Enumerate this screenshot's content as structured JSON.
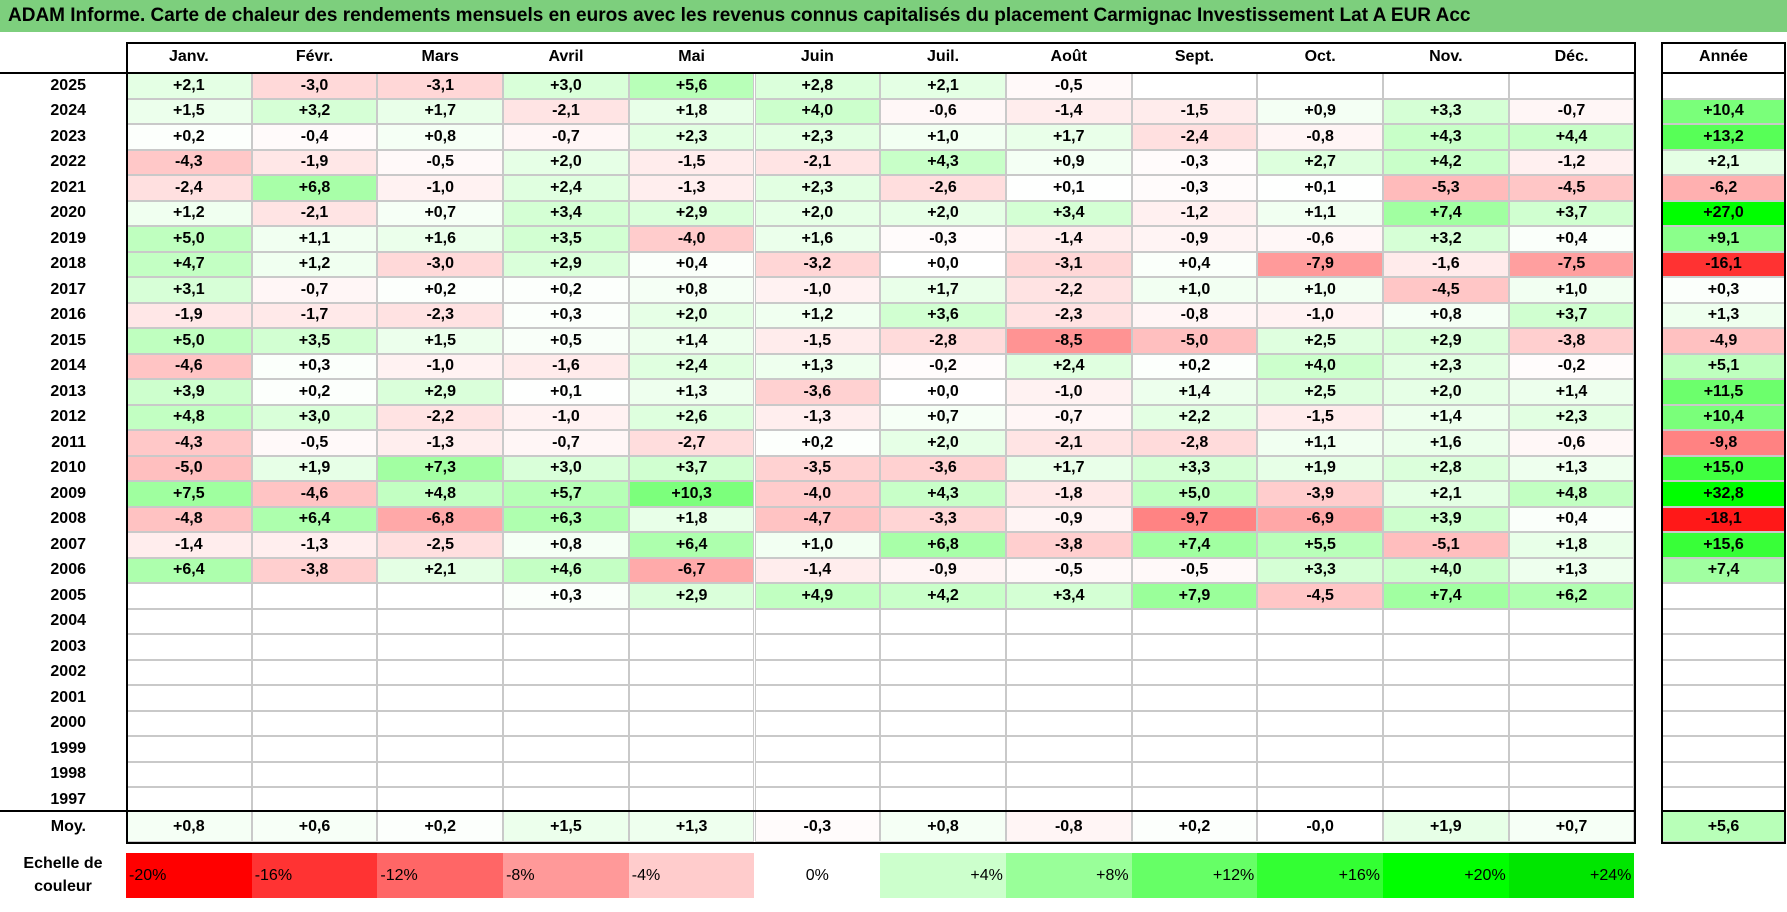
{
  "title": "ADAM Informe. Carte de chaleur des rendements mensuels en euros avec les revenus connus capitalisés du placement Carmignac Investissement Lat A EUR Acc",
  "chart_data": {
    "type": "heatmap",
    "months": [
      "Janv.",
      "Févr.",
      "Mars",
      "Avril",
      "Mai",
      "Juin",
      "Juil.",
      "Août",
      "Sept.",
      "Oct.",
      "Nov.",
      "Déc."
    ],
    "annual_label": "Année",
    "rows": [
      {
        "year": "2025",
        "values": [
          2.1,
          -3.0,
          -3.1,
          3.0,
          5.6,
          2.8,
          2.1,
          -0.5,
          null,
          null,
          null,
          null
        ],
        "annual": null
      },
      {
        "year": "2024",
        "values": [
          1.5,
          3.2,
          1.7,
          -2.1,
          1.8,
          4.0,
          -0.6,
          -1.4,
          -1.5,
          0.9,
          3.3,
          -0.7
        ],
        "annual": 10.4
      },
      {
        "year": "2023",
        "values": [
          0.2,
          -0.4,
          0.8,
          -0.7,
          2.3,
          2.3,
          1.0,
          1.7,
          -2.4,
          -0.8,
          4.3,
          4.4
        ],
        "annual": 13.2
      },
      {
        "year": "2022",
        "values": [
          -4.3,
          -1.9,
          -0.5,
          2.0,
          -1.5,
          -2.1,
          4.3,
          0.9,
          -0.3,
          2.7,
          4.2,
          -1.2
        ],
        "annual": 2.1
      },
      {
        "year": "2021",
        "values": [
          -2.4,
          6.8,
          -1.0,
          2.4,
          -1.3,
          2.3,
          -2.6,
          0.1,
          -0.3,
          0.1,
          -5.3,
          -4.5
        ],
        "annual": -6.2
      },
      {
        "year": "2020",
        "values": [
          1.2,
          -2.1,
          0.7,
          3.4,
          2.9,
          2.0,
          2.0,
          3.4,
          -1.2,
          1.1,
          7.4,
          3.7
        ],
        "annual": 27.0
      },
      {
        "year": "2019",
        "values": [
          5.0,
          1.1,
          1.6,
          3.5,
          -4.0,
          1.6,
          -0.3,
          -1.4,
          -0.9,
          -0.6,
          3.2,
          0.4
        ],
        "annual": 9.1
      },
      {
        "year": "2018",
        "values": [
          4.7,
          1.2,
          -3.0,
          2.9,
          0.4,
          -3.2,
          0.0,
          -3.1,
          0.4,
          -7.9,
          -1.6,
          -7.5
        ],
        "annual": -16.1
      },
      {
        "year": "2017",
        "values": [
          3.1,
          -0.7,
          0.2,
          0.2,
          0.8,
          -1.0,
          1.7,
          -2.2,
          1.0,
          1.0,
          -4.5,
          1.0
        ],
        "annual": 0.3
      },
      {
        "year": "2016",
        "values": [
          -1.9,
          -1.7,
          -2.3,
          0.3,
          2.0,
          1.2,
          3.6,
          -2.3,
          -0.8,
          -1.0,
          0.8,
          3.7
        ],
        "annual": 1.3
      },
      {
        "year": "2015",
        "values": [
          5.0,
          3.5,
          1.5,
          0.5,
          1.4,
          -1.5,
          -2.8,
          -8.5,
          -5.0,
          2.5,
          2.9,
          -3.8
        ],
        "annual": -4.9
      },
      {
        "year": "2014",
        "values": [
          -4.6,
          0.3,
          -1.0,
          -1.6,
          2.4,
          1.3,
          -0.2,
          2.4,
          0.2,
          4.0,
          2.3,
          -0.2
        ],
        "annual": 5.1
      },
      {
        "year": "2013",
        "values": [
          3.9,
          0.2,
          2.9,
          0.1,
          1.3,
          -3.6,
          0.0,
          -1.0,
          1.4,
          2.5,
          2.0,
          1.4
        ],
        "annual": 11.5
      },
      {
        "year": "2012",
        "values": [
          4.8,
          3.0,
          -2.2,
          -1.0,
          2.6,
          -1.3,
          0.7,
          -0.7,
          2.2,
          -1.5,
          1.4,
          2.3
        ],
        "annual": 10.4
      },
      {
        "year": "2011",
        "values": [
          -4.3,
          -0.5,
          -1.3,
          -0.7,
          -2.7,
          0.2,
          2.0,
          -2.1,
          -2.8,
          1.1,
          1.6,
          -0.6
        ],
        "annual": -9.8
      },
      {
        "year": "2010",
        "values": [
          -5.0,
          1.9,
          7.3,
          3.0,
          3.7,
          -3.5,
          -3.6,
          1.7,
          3.3,
          1.9,
          2.8,
          1.3
        ],
        "annual": 15.0
      },
      {
        "year": "2009",
        "values": [
          7.5,
          -4.6,
          4.8,
          5.7,
          10.3,
          -4.0,
          4.3,
          -1.8,
          5.0,
          -3.9,
          2.1,
          4.8
        ],
        "annual": 32.8
      },
      {
        "year": "2008",
        "values": [
          -4.8,
          6.4,
          -6.8,
          6.3,
          1.8,
          -4.7,
          -3.3,
          -0.9,
          -9.7,
          -6.9,
          3.9,
          0.4
        ],
        "annual": -18.1
      },
      {
        "year": "2007",
        "values": [
          -1.4,
          -1.3,
          -2.5,
          0.8,
          6.4,
          1.0,
          6.8,
          -3.8,
          7.4,
          5.5,
          -5.1,
          1.8
        ],
        "annual": 15.6
      },
      {
        "year": "2006",
        "values": [
          6.4,
          -3.8,
          2.1,
          4.6,
          -6.7,
          -1.4,
          -0.9,
          -0.5,
          -0.5,
          3.3,
          4.0,
          1.3
        ],
        "annual": 7.4
      },
      {
        "year": "2005",
        "values": [
          null,
          null,
          null,
          0.3,
          2.9,
          4.9,
          4.2,
          3.4,
          7.9,
          -4.5,
          7.4,
          6.2
        ],
        "annual": null
      },
      {
        "year": "2004",
        "values": [
          null,
          null,
          null,
          null,
          null,
          null,
          null,
          null,
          null,
          null,
          null,
          null
        ],
        "annual": null
      },
      {
        "year": "2003",
        "values": [
          null,
          null,
          null,
          null,
          null,
          null,
          null,
          null,
          null,
          null,
          null,
          null
        ],
        "annual": null
      },
      {
        "year": "2002",
        "values": [
          null,
          null,
          null,
          null,
          null,
          null,
          null,
          null,
          null,
          null,
          null,
          null
        ],
        "annual": null
      },
      {
        "year": "2001",
        "values": [
          null,
          null,
          null,
          null,
          null,
          null,
          null,
          null,
          null,
          null,
          null,
          null
        ],
        "annual": null
      },
      {
        "year": "2000",
        "values": [
          null,
          null,
          null,
          null,
          null,
          null,
          null,
          null,
          null,
          null,
          null,
          null
        ],
        "annual": null
      },
      {
        "year": "1999",
        "values": [
          null,
          null,
          null,
          null,
          null,
          null,
          null,
          null,
          null,
          null,
          null,
          null
        ],
        "annual": null
      },
      {
        "year": "1998",
        "values": [
          null,
          null,
          null,
          null,
          null,
          null,
          null,
          null,
          null,
          null,
          null,
          null
        ],
        "annual": null
      },
      {
        "year": "1997",
        "values": [
          null,
          null,
          null,
          null,
          null,
          null,
          null,
          null,
          null,
          null,
          null,
          null
        ],
        "annual": null
      }
    ],
    "average": {
      "label": "Moy.",
      "values": [
        "+0,8",
        "+0,6",
        "+0,2",
        "+1,5",
        "+1,3",
        "-0,3",
        "+0,8",
        "-0,8",
        "+0,2",
        "-0,0",
        "+1,9",
        "+0,7"
      ],
      "annual": "+5,6"
    },
    "scale_label": "Echelle de couleur",
    "scale": [
      {
        "label": "-20%",
        "color": "#ff0000"
      },
      {
        "label": "-16%",
        "color": "#ff3333"
      },
      {
        "label": "-12%",
        "color": "#ff6666"
      },
      {
        "label": "-8%",
        "color": "#ff9999"
      },
      {
        "label": "-4%",
        "color": "#ffcccc"
      },
      {
        "label": "0%",
        "color": "#ffffff"
      },
      {
        "label": "+4%",
        "color": "#ccffcc"
      },
      {
        "label": "+8%",
        "color": "#99ff99"
      },
      {
        "label": "+12%",
        "color": "#66ff66"
      },
      {
        "label": "+16%",
        "color": "#33ff33"
      },
      {
        "label": "+20%",
        "color": "#00ff00"
      },
      {
        "label": "+24%",
        "color": "#00e600"
      }
    ]
  }
}
